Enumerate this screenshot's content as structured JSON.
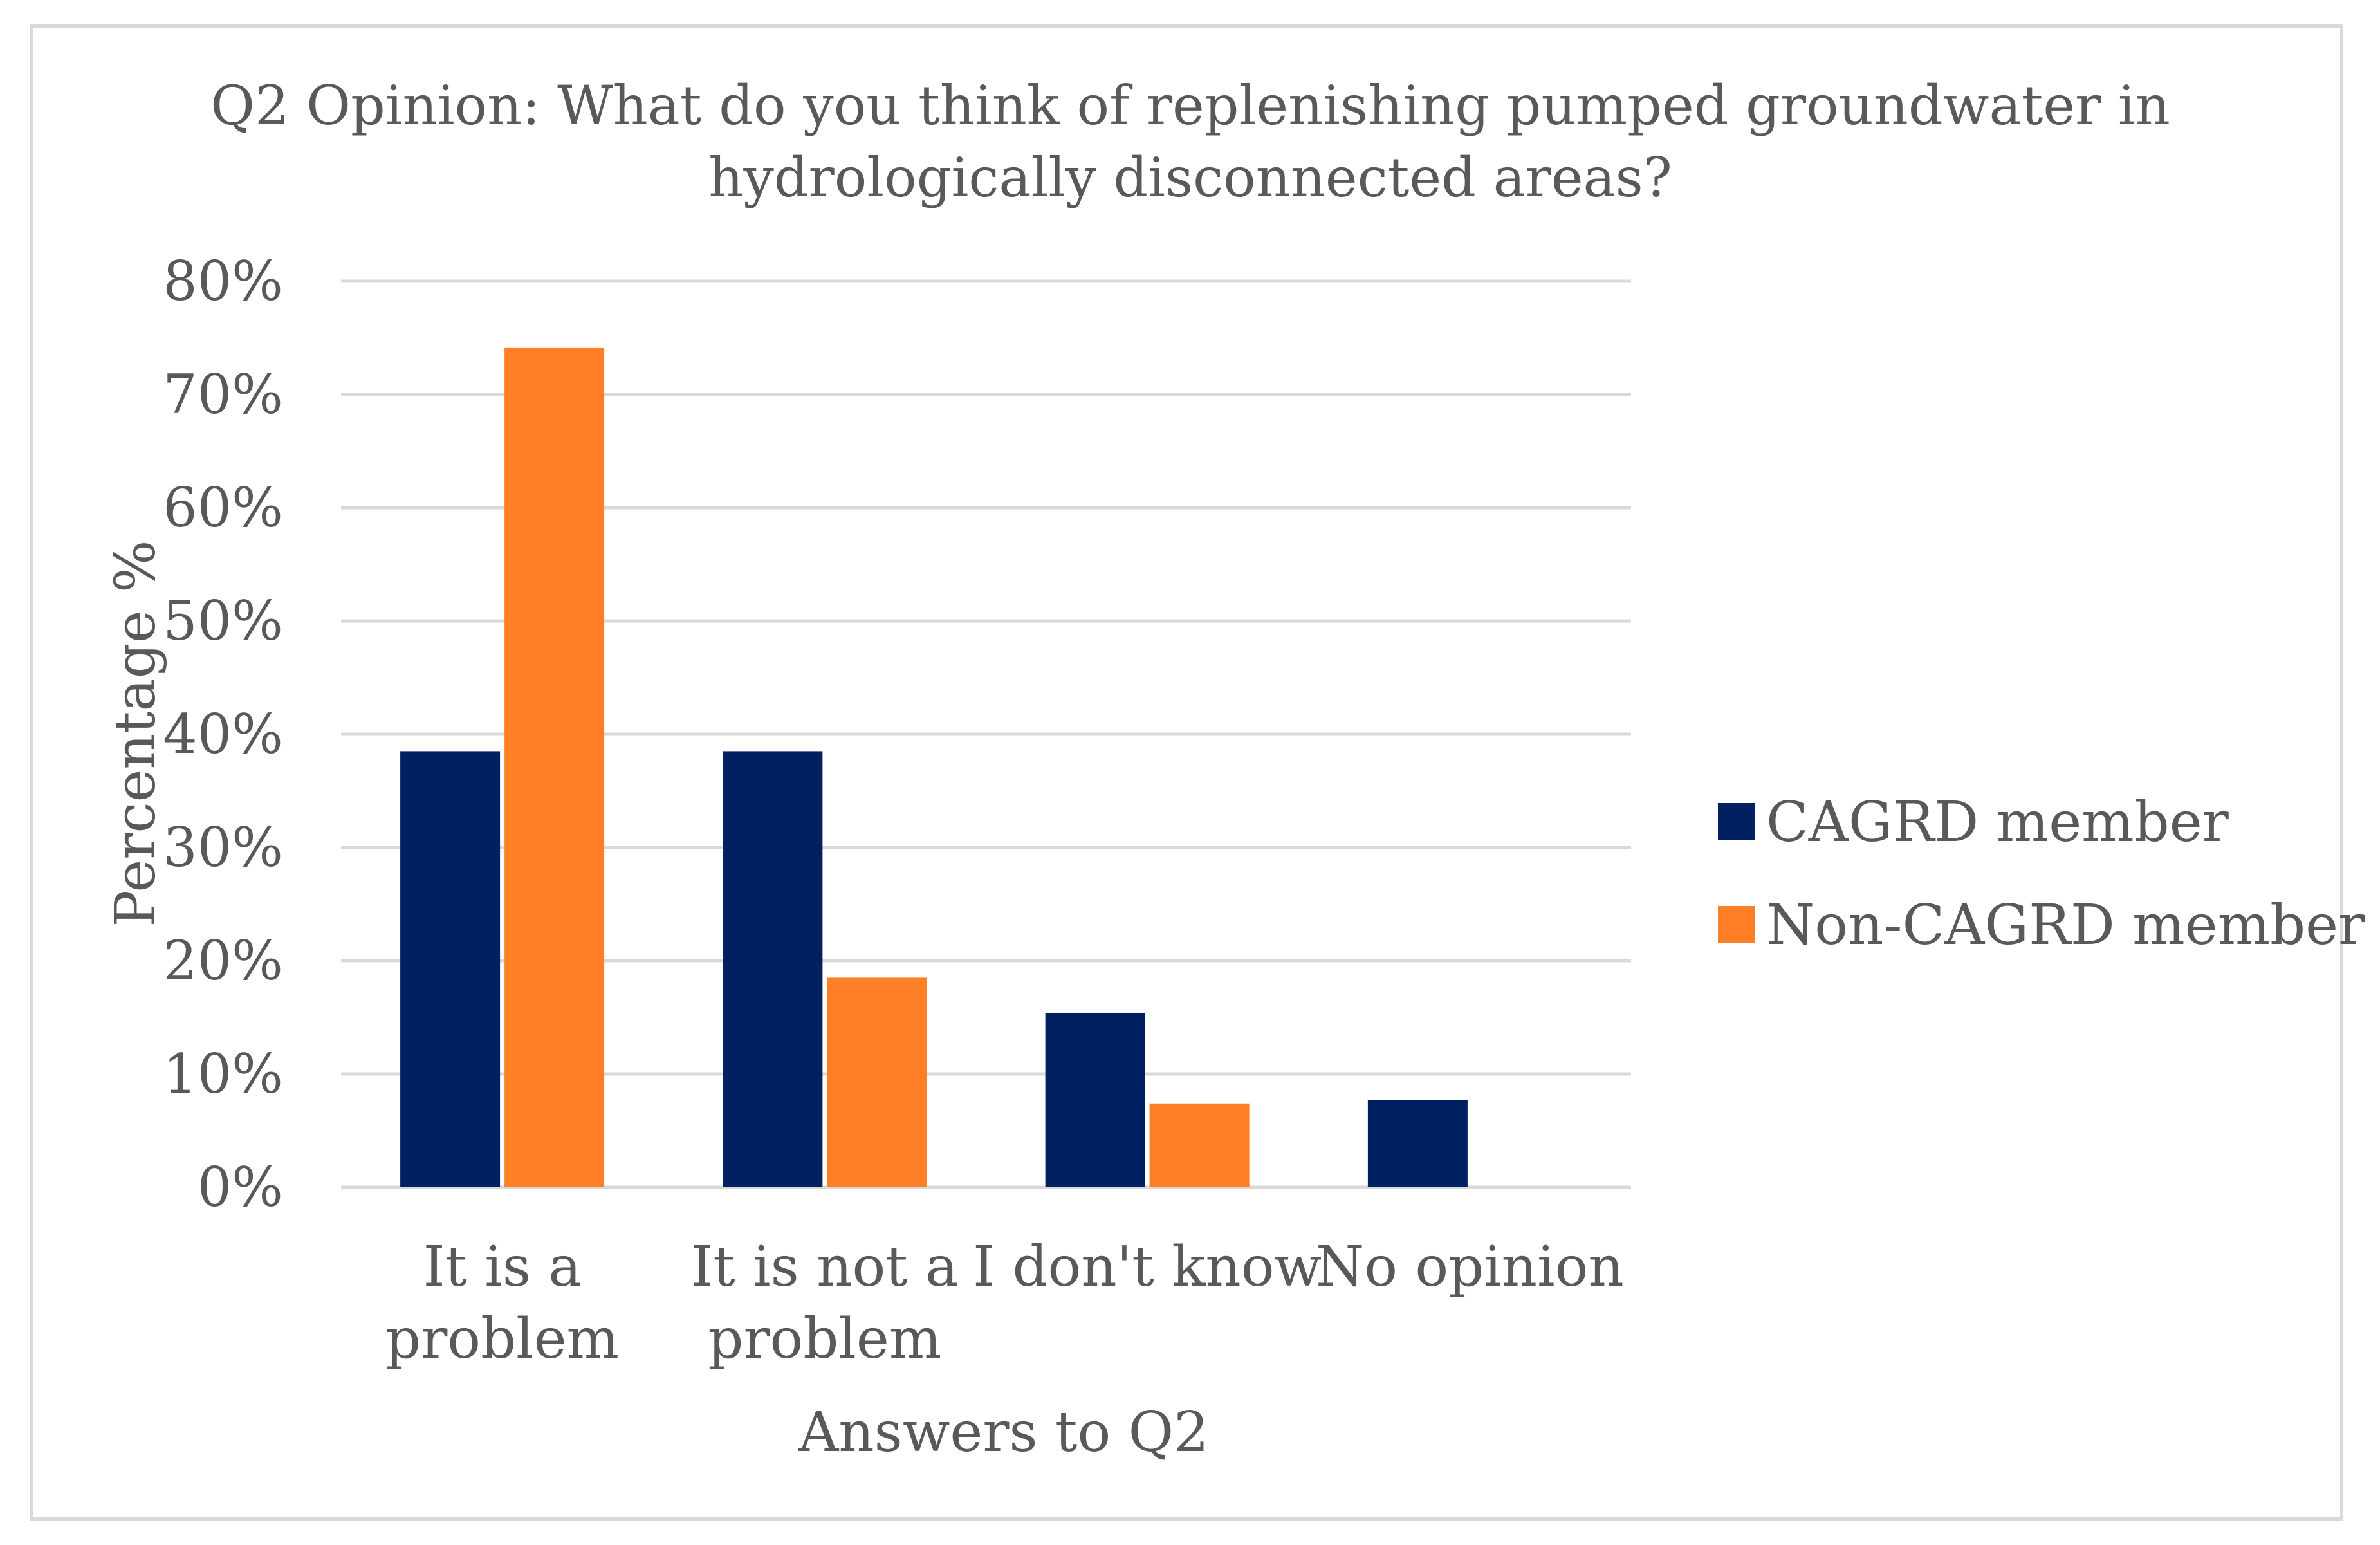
{
  "chart_data": {
    "type": "bar",
    "title_lines": [
      "Q2 Opinion: What do you think of replenishing pumped groundwater in",
      "hydrologically disconnected areas?"
    ],
    "xlabel": "Answers to Q2",
    "ylabel": "Percentage %",
    "ylim": [
      0,
      80
    ],
    "yticks": [
      "0%",
      "10%",
      "20%",
      "30%",
      "40%",
      "50%",
      "60%",
      "70%",
      "80%"
    ],
    "categories": [
      "It is a problem",
      "It is not a problem",
      "I don't know",
      "No opinion"
    ],
    "category_label_lines": [
      [
        "It is a",
        "problem"
      ],
      [
        "It is not a",
        "problem"
      ],
      [
        "I don't know"
      ],
      [
        "No opinion"
      ]
    ],
    "series": [
      {
        "name": "CAGRD member",
        "color": "#002060",
        "values": [
          38.5,
          38.5,
          15.4,
          7.7
        ]
      },
      {
        "name": "Non-CAGRD member",
        "color": "#ff7f27",
        "values": [
          74.1,
          18.5,
          7.4,
          0
        ]
      }
    ],
    "grid": true,
    "legend_position": "right"
  }
}
